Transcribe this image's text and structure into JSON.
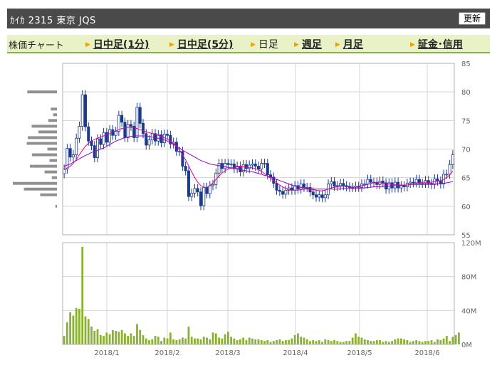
{
  "header": {
    "title": "ｶｲｶ 2315 東京 JQS",
    "refresh_label": "更新"
  },
  "nav": {
    "label": "株価チャート",
    "items": [
      {
        "label": "日中足(1分)",
        "link": true
      },
      {
        "label": "日中足(5分)",
        "link": true
      },
      {
        "label": "日足",
        "link": false
      },
      {
        "label": "週足",
        "link": true
      },
      {
        "label": "月足",
        "link": true
      },
      {
        "label": "証金･信用",
        "link": true
      }
    ]
  },
  "colors": {
    "header_bg": "#4a4a4a",
    "nav_bg": "#e9f2c6",
    "nav_accent": "#8ab24c",
    "arrow": "#f2a000",
    "candle": "#1a3a8a",
    "ma_short": "#e000a0",
    "ma_long": "#9900cc",
    "volume": "#8ab230",
    "price_hist": "#909090"
  },
  "chart_data": [
    {
      "type": "candlestick",
      "title": "",
      "x_tick_labels": [
        "2018/1",
        "2018/2",
        "2018/3",
        "2018/4",
        "2018/5",
        "2018/6"
      ],
      "y_tick_labels": [
        "85",
        "80",
        "75",
        "70",
        "65",
        "60",
        "55"
      ],
      "ylim": [
        55,
        85
      ],
      "close": [
        66.5,
        70.1,
        68.6,
        69.0,
        71.9,
        74.0,
        79.5,
        73.9,
        71.4,
        70.6,
        68.5,
        71.8,
        70.8,
        72.9,
        71.2,
        73.4,
        72.4,
        73.1,
        75.9,
        74.7,
        72.0,
        74.3,
        74.0,
        72.0,
        77.3,
        74.5,
        72.7,
        70.7,
        71.6,
        72.7,
        71.4,
        72.5,
        71.1,
        72.6,
        72.4,
        70.9,
        71.2,
        69.6,
        69.6,
        67.0,
        66.2,
        61.7,
        62.3,
        63.1,
        62.5,
        60.1,
        63.3,
        62.2,
        63.6,
        63.8,
        65.8,
        67.5,
        66.6,
        67.5,
        67.3,
        67.4,
        66.6,
        67.0,
        66.0,
        67.3,
        66.6,
        67.2,
        67.4,
        67.0,
        66.5,
        67.5,
        67.5,
        65.5,
        65.1,
        64.0,
        62.8,
        62.6,
        62.1,
        62.8,
        63.2,
        62.8,
        63.6,
        63.0,
        63.9,
        63.3,
        63.3,
        62.5,
        62.0,
        61.6,
        62.0,
        61.5,
        62.0,
        63.9,
        64.3,
        63.5,
        63.6,
        64.0,
        63.6,
        63.4,
        63.3,
        63.3,
        63.5,
        63.3,
        63.9,
        63.9,
        64.7,
        64.2,
        64.2,
        63.8,
        64.4,
        64.1,
        63.0,
        64.1,
        63.2,
        64.2,
        63.2,
        63.6,
        63.4,
        64.0,
        64.2,
        64.1,
        64.7,
        64.0,
        64.0,
        64.5,
        64.0,
        63.8,
        64.8,
        64.4,
        63.9,
        65.6,
        65.6,
        67.3,
        69.0
      ],
      "ma_short": [
        66.4,
        66.7,
        67.0,
        67.5,
        68.2,
        69.0,
        69.8,
        70.5,
        71.0,
        71.4,
        71.7,
        71.9,
        72.1,
        72.3,
        72.5,
        72.7,
        73.0,
        73.2,
        73.4,
        73.6,
        73.7,
        73.8,
        73.8,
        73.7,
        73.6,
        73.4,
        73.2,
        73.0,
        72.9,
        72.7,
        72.6,
        72.4,
        72.2,
        72.0,
        71.7,
        71.4,
        71.0,
        70.5,
        69.8,
        69.0,
        68.1,
        67.1,
        66.0,
        65.0,
        64.2,
        63.6,
        63.3,
        63.3,
        63.6,
        64.1,
        64.7,
        65.3,
        65.8,
        66.2,
        66.5,
        66.7,
        66.8,
        66.9,
        66.9,
        66.9,
        66.8,
        66.8,
        66.7,
        66.6,
        66.4,
        66.1,
        65.7,
        65.3,
        64.9,
        64.5,
        64.1,
        63.7,
        63.4,
        63.1,
        62.9,
        62.8,
        62.8,
        62.8,
        62.9,
        63.0,
        63.0,
        63.0,
        62.9,
        62.8,
        62.7,
        62.7,
        62.8,
        63.0,
        63.2,
        63.3,
        63.4,
        63.5,
        63.5,
        63.5,
        63.5,
        63.5,
        63.5,
        63.5,
        63.6,
        63.7,
        63.8,
        64.0,
        64.1,
        64.1,
        64.1,
        64.0,
        63.9,
        63.9,
        63.8,
        63.8,
        63.7,
        63.7,
        63.7,
        63.7,
        63.8,
        63.9,
        64.0,
        64.1,
        64.2,
        64.2,
        64.2,
        64.2,
        64.3,
        64.4,
        64.5,
        64.7,
        65.0,
        65.5,
        66.2
      ],
      "ma_long": [
        67.0,
        67.2,
        67.4,
        67.7,
        68.0,
        68.3,
        68.6,
        68.9,
        69.1,
        69.4,
        69.6,
        69.8,
        70.0,
        70.2,
        70.5,
        70.8,
        71.1,
        71.4,
        71.6,
        71.8,
        72.0,
        72.1,
        72.2,
        72.3,
        72.3,
        72.3,
        72.3,
        72.3,
        72.2,
        72.1,
        72.0,
        71.9,
        71.8,
        71.6,
        71.4,
        71.1,
        70.8,
        70.5,
        70.2,
        69.8,
        69.5,
        69.2,
        68.9,
        68.6,
        68.3,
        68.0,
        67.8,
        67.6,
        67.4,
        67.3,
        67.2,
        67.1,
        67.0,
        66.9,
        66.8,
        66.7,
        66.6,
        66.5,
        66.4,
        66.3,
        66.2,
        66.1,
        66.0,
        65.9,
        65.7,
        65.6,
        65.4,
        65.3,
        65.1,
        64.9,
        64.7,
        64.5,
        64.3,
        64.1,
        63.9,
        63.7,
        63.5,
        63.4,
        63.3,
        63.2,
        63.1,
        63.1,
        63.0,
        63.0,
        63.0,
        63.0,
        63.0,
        63.0,
        63.0,
        63.0,
        63.0,
        63.0,
        63.1,
        63.1,
        63.1,
        63.1,
        63.1,
        63.1,
        63.2,
        63.2,
        63.3,
        63.3,
        63.4,
        63.4,
        63.4,
        63.5,
        63.5,
        63.5,
        63.6,
        63.6,
        63.6,
        63.7,
        63.7,
        63.7,
        63.8,
        63.8,
        63.8,
        63.8,
        63.8,
        63.8,
        63.8,
        63.9,
        63.9,
        63.9,
        64.0,
        64.0,
        64.1,
        64.2,
        64.3
      ]
    },
    {
      "type": "bar",
      "title": "",
      "x_tick_labels": [
        "2018/1",
        "2018/2",
        "2018/3",
        "2018/4",
        "2018/5",
        "2018/6"
      ],
      "y_tick_labels": [
        "120M",
        "80M",
        "40M",
        "0M"
      ],
      "ylim": [
        0,
        120
      ],
      "volume_millions": [
        10,
        26,
        38,
        34,
        43,
        42,
        115,
        33,
        30,
        21,
        16,
        18,
        11,
        10,
        14,
        12,
        17,
        16,
        15,
        17,
        13,
        10,
        13,
        10,
        24,
        17,
        11,
        7,
        5,
        6,
        10,
        9,
        4,
        8,
        7,
        14,
        6,
        5,
        6,
        8,
        7,
        21,
        9,
        7,
        7,
        6,
        9,
        8,
        6,
        14,
        13,
        8,
        7,
        12,
        15,
        9,
        7,
        5,
        6,
        8,
        5,
        8,
        7,
        6,
        6,
        5,
        4,
        5,
        3,
        4,
        5,
        6,
        4,
        5,
        5,
        7,
        11,
        13,
        9,
        8,
        6,
        4,
        5,
        4,
        5,
        3,
        6,
        5,
        4,
        5,
        4,
        3,
        3,
        4,
        4,
        8,
        13,
        9,
        8,
        6,
        5,
        4,
        4,
        5,
        5,
        3,
        4,
        3,
        4,
        6,
        7,
        7,
        6,
        5,
        3,
        4,
        5,
        4,
        3,
        4,
        4,
        5,
        3,
        6,
        5,
        7,
        10,
        4,
        9,
        11,
        14
      ]
    }
  ]
}
